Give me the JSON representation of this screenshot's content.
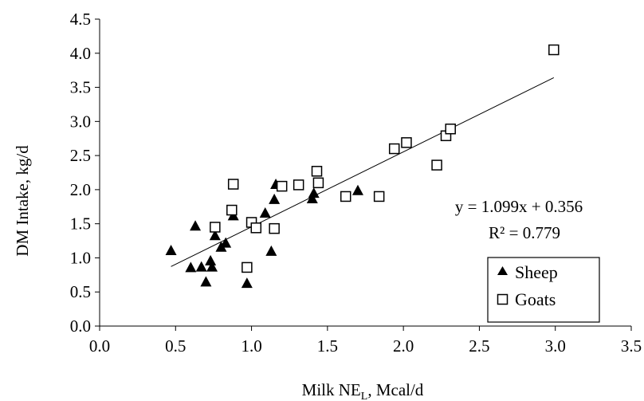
{
  "chart_data": {
    "type": "scatter",
    "xlabel": "Milk NE",
    "xlabel_sub": "L",
    "xlabel_suffix": ", Mcal/d",
    "ylabel": "DM Intake, kg/d",
    "xlim": [
      0.0,
      3.5
    ],
    "ylim": [
      0.0,
      4.5
    ],
    "xticks": [
      "0.0",
      "0.5",
      "1.0",
      "1.5",
      "2.0",
      "2.5",
      "3.0",
      "3.5"
    ],
    "yticks": [
      "0.0",
      "0.5",
      "1.0",
      "1.5",
      "2.0",
      "2.5",
      "3.0",
      "3.5",
      "4.0",
      "4.5"
    ],
    "grid": false,
    "legend_position": "bottom-right",
    "series": [
      {
        "name": "Sheep",
        "marker": "triangle-filled",
        "points": [
          [
            0.47,
            1.11
          ],
          [
            0.6,
            0.86
          ],
          [
            0.63,
            1.47
          ],
          [
            0.67,
            0.87
          ],
          [
            0.7,
            0.65
          ],
          [
            0.73,
            0.96
          ],
          [
            0.74,
            0.87
          ],
          [
            0.76,
            1.33
          ],
          [
            0.8,
            1.16
          ],
          [
            0.83,
            1.22
          ],
          [
            0.88,
            1.62
          ],
          [
            0.97,
            0.63
          ],
          [
            1.09,
            1.66
          ],
          [
            1.13,
            1.1
          ],
          [
            1.15,
            1.86
          ],
          [
            1.16,
            2.08
          ],
          [
            1.4,
            1.87
          ],
          [
            1.41,
            1.95
          ],
          [
            1.7,
            1.99
          ]
        ]
      },
      {
        "name": "Goats",
        "marker": "square-open",
        "points": [
          [
            0.76,
            1.45
          ],
          [
            0.87,
            1.7
          ],
          [
            0.88,
            2.08
          ],
          [
            0.97,
            0.86
          ],
          [
            1.0,
            1.52
          ],
          [
            1.03,
            1.44
          ],
          [
            1.15,
            1.43
          ],
          [
            1.2,
            2.05
          ],
          [
            1.31,
            2.07
          ],
          [
            1.43,
            2.27
          ],
          [
            1.44,
            2.1
          ],
          [
            1.62,
            1.9
          ],
          [
            1.84,
            1.9
          ],
          [
            1.94,
            2.6
          ],
          [
            2.02,
            2.69
          ],
          [
            2.22,
            2.36
          ],
          [
            2.28,
            2.79
          ],
          [
            2.31,
            2.89
          ],
          [
            2.99,
            4.05
          ]
        ]
      }
    ],
    "trendline": {
      "slope": 1.099,
      "intercept": 0.356,
      "x_range": [
        0.47,
        2.99
      ],
      "equation_label": "y = 1.099x + 0.356",
      "r2_label": "R² = 0.779"
    }
  }
}
